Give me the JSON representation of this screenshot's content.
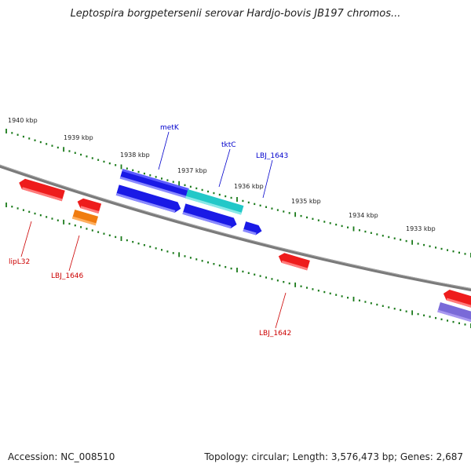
{
  "title": "Leptospira borgpetersenii serovar Hardjo-bovis JB197 chromos...",
  "footer": {
    "accession": "Accession: NC_008510",
    "summary": "Topology: circular; Length: 3,576,473 bp; Genes: 2,687"
  },
  "kbp_labels": [
    "1940 kbp",
    "1939 kbp",
    "1938 kbp",
    "1937 kbp",
    "1936 kbp",
    "1935 kbp",
    "1934 kbp",
    "1933 kbp"
  ],
  "genes_forward": [
    {
      "label": "metK",
      "color": "#1a1ae6"
    },
    {
      "label": "tktC",
      "color": "#22c8c8"
    },
    {
      "label": "LBJ_1643",
      "color": "#1a1ae6"
    }
  ],
  "genes_reverse": [
    {
      "label": "lipL32",
      "color": "#ee1c1c"
    },
    {
      "label": "LBJ_1646",
      "color": "#f07c10"
    },
    {
      "label": "LBJ_1642",
      "color": "#ee1c1c"
    }
  ],
  "colors": {
    "forward_label": "#0000cc",
    "reverse_label": "#cc0000",
    "backbone": "#7a7a7a",
    "ticks": "#1a7a1a"
  }
}
